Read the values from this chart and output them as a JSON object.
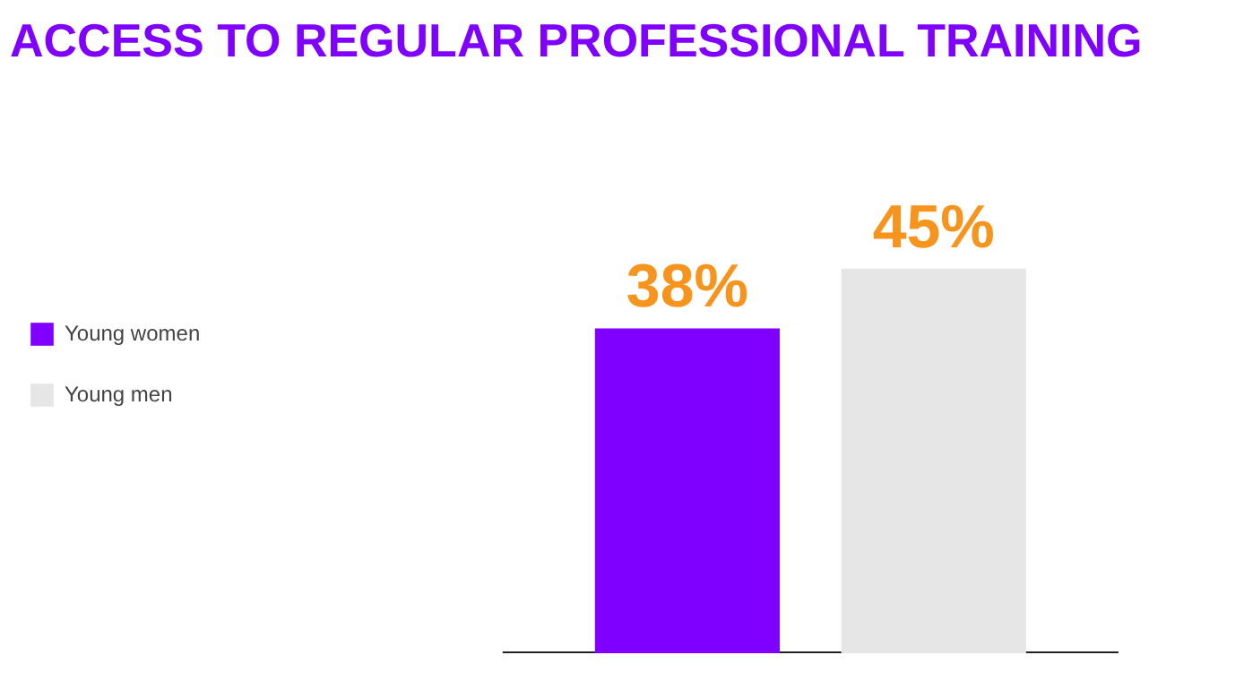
{
  "chart_data": {
    "type": "bar",
    "title": "ACCESS TO REGULAR PROFESSIONAL TRAINING",
    "categories": [
      null
    ],
    "series": [
      {
        "name": "Young women",
        "color": "#7f00ff",
        "values": [
          38
        ],
        "value_labels": [
          "38%"
        ]
      },
      {
        "name": "Young men",
        "color": "#e6e6e6",
        "values": [
          45
        ],
        "value_labels": [
          "45%"
        ]
      }
    ],
    "legend": "left",
    "grid": false
  }
}
